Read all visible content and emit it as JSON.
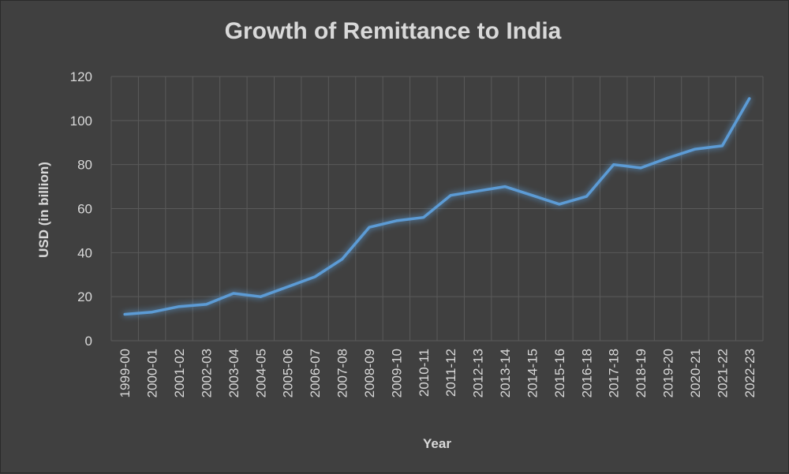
{
  "chart_data": {
    "type": "line",
    "title": "Growth of Remittance to India",
    "xlabel": "Year",
    "ylabel": "USD (in billion)",
    "ylim": [
      0,
      120
    ],
    "yticks": [
      0,
      20,
      40,
      60,
      80,
      100,
      120
    ],
    "grid": true,
    "legend": "none",
    "categories": [
      "1999-00",
      "2000-01",
      "2001-02",
      "2002-03",
      "2003-04",
      "2004-05",
      "2005-06",
      "2006-07",
      "2007-08",
      "2008-09",
      "2009-10",
      "2010-11",
      "2011-12",
      "2012-13",
      "2013-14",
      "2014-15",
      "2015-16",
      "2016-18",
      "2017-18",
      "2018-19",
      "2019-20",
      "2020-21",
      "2021-22",
      "2022-23"
    ],
    "series": [
      {
        "name": "",
        "values": [
          12,
          13,
          15.5,
          16.5,
          21.5,
          20,
          24.5,
          29,
          37,
          51.5,
          54.5,
          56,
          66,
          68,
          70,
          66,
          62,
          65.5,
          80,
          78.5,
          83,
          87,
          88.5,
          110
        ]
      }
    ],
    "colors": {
      "line": "#5b9bd5",
      "background": "#404040",
      "grid": "#5a5a5a",
      "text": "#d9d9d9"
    }
  }
}
